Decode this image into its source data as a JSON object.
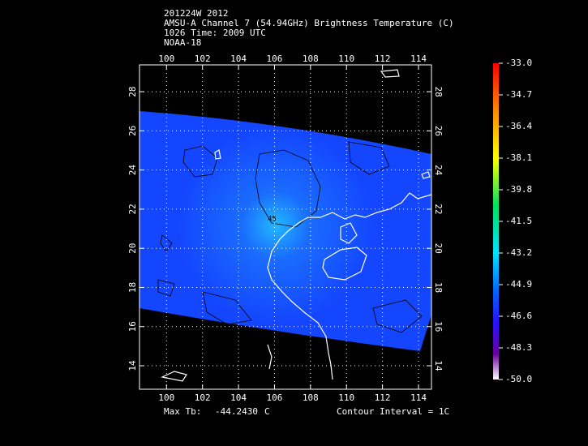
{
  "header": {
    "lines": [
      "201224W 2012",
      "AMSU-A Channel 7 (54.94GHz) Brightness Temperature (C)",
      "1026 Time: 2009 UTC",
      "NOAA-18"
    ]
  },
  "map": {
    "lonlim": [
      98.5,
      114.72
    ],
    "latlim": [
      12.8,
      29.37
    ],
    "lonticks": [
      100,
      102,
      104,
      106,
      108,
      110,
      112,
      114
    ],
    "latticks": [
      14,
      16,
      18,
      20,
      22,
      24,
      26,
      28
    ],
    "contour_label": "45"
  },
  "colorbar": {
    "lim": [
      -50,
      -33
    ],
    "ticks": [
      {
        "value": -33,
        "label": "-33.0"
      },
      {
        "value": -34.7,
        "label": "-34.7"
      },
      {
        "value": -36.4,
        "label": "-36.4"
      },
      {
        "value": -38.1,
        "label": "-38.1"
      },
      {
        "value": -39.8,
        "label": "-39.8"
      },
      {
        "value": -41.5,
        "label": "-41.5"
      },
      {
        "value": -43.2,
        "label": "-43.2"
      },
      {
        "value": -44.9,
        "label": "-44.9"
      },
      {
        "value": -46.6,
        "label": "-46.6"
      },
      {
        "value": -48.3,
        "label": "-48.3"
      },
      {
        "value": -50,
        "label": "-50.0"
      }
    ]
  },
  "footer": {
    "max_tb_label": "Max Tb:",
    "max_tb_value": "-44.2430",
    "max_tb_unit": "C",
    "contour_interval": "Contour Interval = 1C"
  }
}
